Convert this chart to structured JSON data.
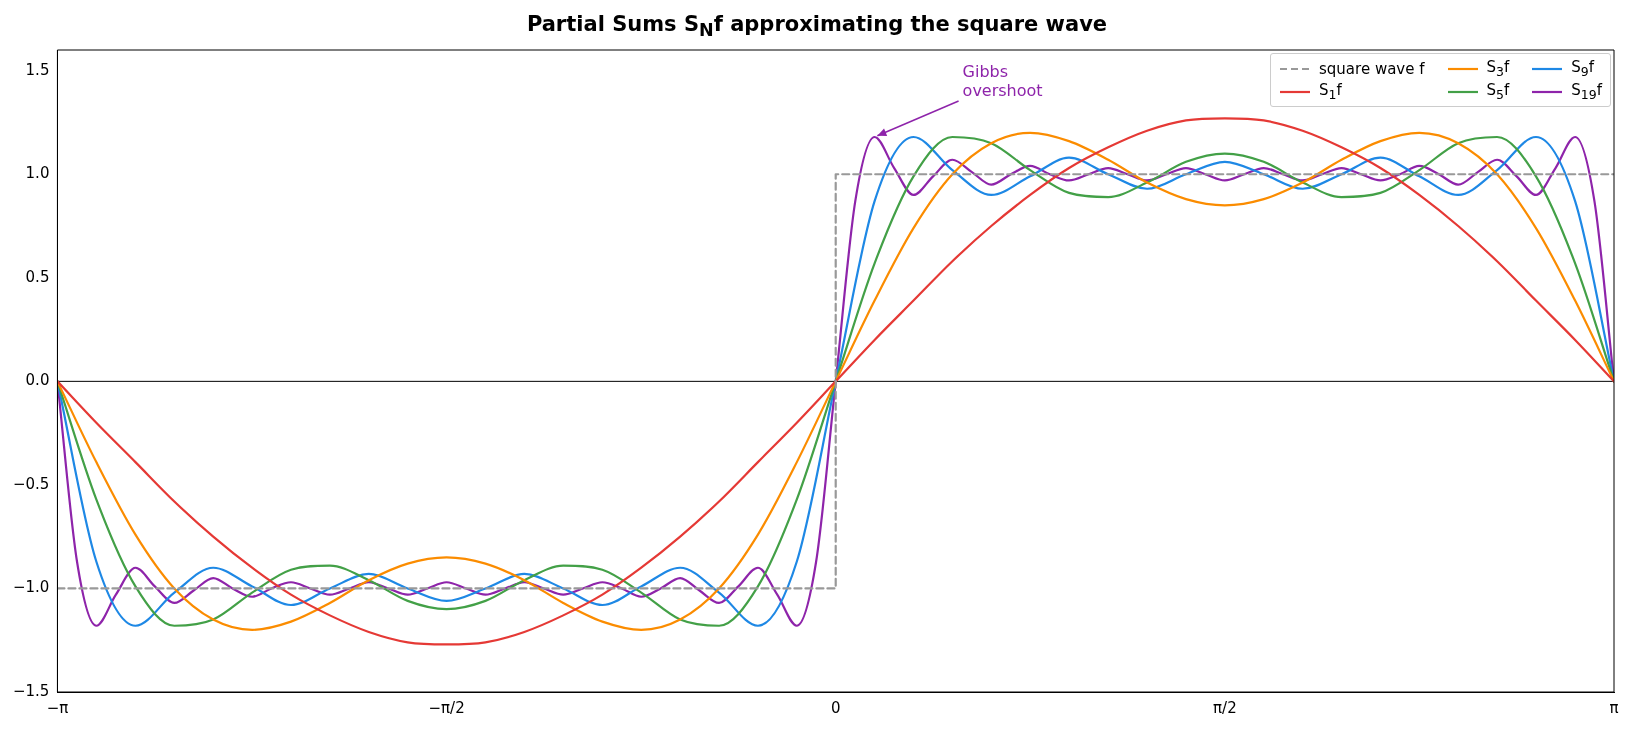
{
  "chart_data": {
    "type": "line",
    "title": "Partial Sums S$_{N}$f approximating the square wave",
    "x": [
      -3.142,
      -2.985,
      -2.827,
      -2.67,
      -2.513,
      -2.356,
      -2.199,
      -2.042,
      -1.885,
      -1.728,
      -1.571,
      -1.414,
      -1.257,
      -1.1,
      -0.942,
      -0.785,
      -0.628,
      -0.471,
      -0.314,
      -0.157,
      0,
      0.157,
      0.314,
      0.471,
      0.628,
      0.785,
      0.942,
      1.1,
      1.257,
      1.414,
      1.571,
      1.728,
      1.885,
      2.042,
      2.199,
      2.356,
      2.513,
      2.67,
      2.827,
      2.985,
      3.142
    ],
    "xlim": [
      -3.142,
      3.142
    ],
    "xticks": [
      {
        "value": -3.142,
        "label": "−π"
      },
      {
        "value": -1.571,
        "label": "−π/2"
      },
      {
        "value": 0,
        "label": "0"
      },
      {
        "value": 1.571,
        "label": "π/2"
      },
      {
        "value": 3.142,
        "label": "π"
      }
    ],
    "ylim": [
      -1.5,
      1.6
    ],
    "yticks": [
      {
        "value": -1.5,
        "label": "−1.5"
      },
      {
        "value": -1,
        "label": "−1.0"
      },
      {
        "value": -0.5,
        "label": "−0.5"
      },
      {
        "value": 0,
        "label": "0.0"
      },
      {
        "value": 0.5,
        "label": "0.5"
      },
      {
        "value": 1,
        "label": "1.0"
      },
      {
        "value": 1.5,
        "label": "1.5"
      }
    ],
    "legend": "top right",
    "ref_lines": [
      {
        "axis": "y",
        "value": 0,
        "color": "#000000"
      }
    ],
    "annotations": [
      {
        "text": "Gibbs\novershoot",
        "x": 0.157,
        "y": 1.18
      }
    ],
    "series": [
      {
        "name": "square wave f",
        "color": "#999999",
        "line_style": "dashed",
        "x": [
          -3.142,
          0,
          0,
          3.142
        ],
        "values": [
          -1,
          -1,
          1,
          1
        ]
      },
      {
        "name": "S$_{1}$f",
        "color": "#e53935",
        "values": [
          0,
          -0.2,
          -0.39,
          -0.58,
          -0.75,
          -0.9,
          -1.03,
          -1.13,
          -1.21,
          -1.26,
          -1.27,
          -1.26,
          -1.21,
          -1.13,
          -1.03,
          -0.9,
          -0.75,
          -0.58,
          -0.39,
          -0.2,
          0,
          0.2,
          0.39,
          0.58,
          0.75,
          0.9,
          1.03,
          1.13,
          1.21,
          1.26,
          1.27,
          1.26,
          1.21,
          1.13,
          1.03,
          0.9,
          0.75,
          0.58,
          0.39,
          0.2,
          0
        ]
      },
      {
        "name": "S$_{3}$f",
        "color": "#fb8c00",
        "values": [
          0,
          -0.39,
          -0.74,
          -1.0,
          -1.15,
          -1.2,
          -1.16,
          -1.07,
          -0.96,
          -0.88,
          -0.85,
          -0.88,
          -0.96,
          -1.07,
          -1.16,
          -1.2,
          -1.15,
          -1.0,
          -0.74,
          -0.39,
          0,
          0.39,
          0.74,
          1.0,
          1.15,
          1.2,
          1.16,
          1.07,
          0.96,
          0.88,
          0.85,
          0.88,
          0.96,
          1.07,
          1.16,
          1.2,
          1.15,
          1.0,
          0.74,
          0.39,
          0
        ]
      },
      {
        "name": "S$_{5}$f",
        "color": "#43a047",
        "values": [
          0,
          -0.57,
          -0.99,
          -1.18,
          -1.15,
          -1.02,
          -0.91,
          -0.89,
          -0.96,
          -1.06,
          -1.1,
          -1.06,
          -0.96,
          -0.89,
          -0.91,
          -1.02,
          -1.15,
          -1.18,
          -0.99,
          -0.57,
          0,
          0.57,
          0.99,
          1.18,
          1.15,
          1.02,
          0.91,
          0.89,
          0.96,
          1.06,
          1.1,
          1.06,
          0.96,
          0.89,
          0.91,
          1.02,
          1.15,
          1.18,
          0.99,
          0.57,
          0
        ]
      },
      {
        "name": "S$_{9}$f",
        "color": "#1e88e5",
        "values": [
          0,
          -0.87,
          -1.18,
          -1.02,
          -0.9,
          -0.99,
          -1.08,
          -1.0,
          -0.93,
          -1.0,
          -1.06,
          -1.0,
          -0.93,
          -1.0,
          -1.08,
          -0.99,
          -0.9,
          -1.02,
          -1.18,
          -0.87,
          0,
          0.87,
          1.18,
          1.02,
          0.9,
          0.99,
          1.08,
          1.0,
          0.93,
          1.0,
          1.06,
          1.0,
          0.93,
          1.0,
          1.08,
          0.99,
          0.9,
          1.02,
          1.18,
          0.87,
          0
        ]
      },
      {
        "name": "S$_{19}$f",
        "color": "#8e24aa",
        "x": [
          -3.142,
          -3.063,
          -2.985,
          -2.906,
          -2.827,
          -2.749,
          -2.67,
          -2.592,
          -2.513,
          -2.435,
          -2.356,
          -2.278,
          -2.199,
          -2.121,
          -2.042,
          -1.963,
          -1.885,
          -1.806,
          -1.728,
          -1.649,
          -1.571,
          -1.492,
          -1.414,
          -1.335,
          -1.257,
          -1.178,
          -1.1,
          -1.021,
          -0.942,
          -0.864,
          -0.785,
          -0.707,
          -0.628,
          -0.55,
          -0.471,
          -0.393,
          -0.314,
          -0.236,
          -0.157,
          -0.079,
          0,
          0.079,
          0.157,
          0.236,
          0.314,
          0.393,
          0.471,
          0.55,
          0.628,
          0.707,
          0.785,
          0.864,
          0.942,
          1.021,
          1.1,
          1.178,
          1.257,
          1.335,
          1.414,
          1.492,
          1.571,
          1.649,
          1.728,
          1.806,
          1.885,
          1.963,
          2.042,
          2.121,
          2.199,
          2.278,
          2.356,
          2.435,
          2.513,
          2.592,
          2.67,
          2.749,
          2.827,
          2.906,
          2.985,
          3.063,
          3.142
        ],
        "values": [
          0,
          -0.87,
          -1.18,
          -1.03,
          -0.9,
          -0.99,
          -1.07,
          -1.01,
          -0.95,
          -1.0,
          -1.04,
          -1.0,
          -0.97,
          -1.0,
          -1.03,
          -1.0,
          -0.97,
          -1.0,
          -1.03,
          -1.0,
          -0.97,
          -1.0,
          -1.03,
          -1.0,
          -0.97,
          -1.0,
          -1.03,
          -1.0,
          -0.97,
          -1.0,
          -1.04,
          -1.0,
          -0.95,
          -1.01,
          -1.07,
          -0.99,
          -0.9,
          -1.03,
          -1.18,
          -0.87,
          0,
          0.87,
          1.18,
          1.03,
          0.9,
          0.99,
          1.07,
          1.01,
          0.95,
          1.0,
          1.04,
          1.0,
          0.97,
          1.0,
          1.03,
          1.0,
          0.97,
          1.0,
          1.03,
          1.0,
          0.97,
          1.0,
          1.03,
          1.0,
          0.97,
          1.0,
          1.03,
          1.0,
          0.97,
          1.0,
          1.04,
          1.0,
          0.95,
          1.01,
          1.07,
          0.99,
          0.9,
          1.03,
          1.18,
          0.87,
          0
        ]
      }
    ]
  }
}
